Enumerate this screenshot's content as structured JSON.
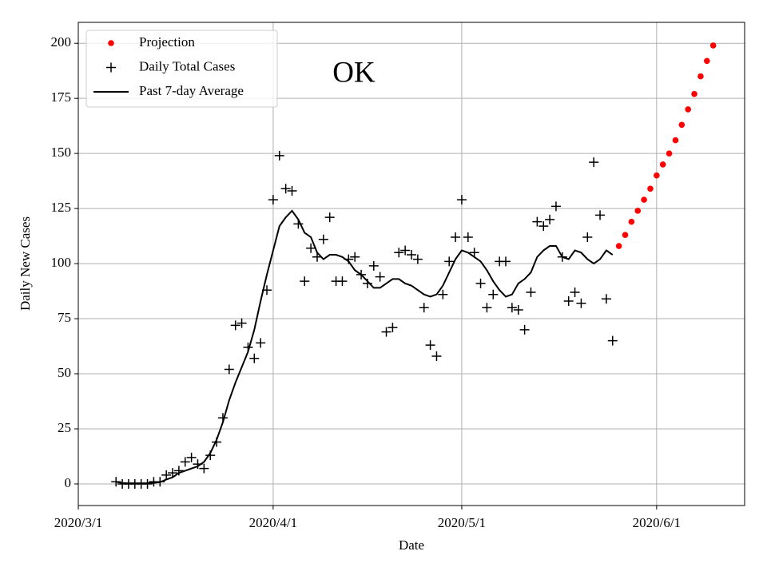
{
  "chart_data": {
    "type": "line",
    "annotation": "OK",
    "x_label": "Date",
    "y_label": "Daily New Cases",
    "xlim": [
      "2020/3/1",
      "2020/6/15"
    ],
    "xticks": [
      "2020/3/1",
      "2020/4/1",
      "2020/5/1",
      "2020/6/1"
    ],
    "ylim": [
      -9.8,
      209.5
    ],
    "yticks": [
      0,
      25,
      50,
      75,
      100,
      125,
      150,
      175,
      200
    ],
    "grid": true,
    "legend": "upper left",
    "series": [
      {
        "name": "Projection",
        "color": "#ff0000",
        "style": "dot",
        "x": [
          "2020/5/26",
          "2020/5/27",
          "2020/5/28",
          "2020/5/29",
          "2020/5/30",
          "2020/5/31",
          "2020/6/1",
          "2020/6/2",
          "2020/6/3",
          "2020/6/4",
          "2020/6/5",
          "2020/6/6",
          "2020/6/7",
          "2020/6/8",
          "2020/6/9",
          "2020/6/10"
        ],
        "values": [
          108,
          113,
          119,
          124,
          129,
          134,
          140,
          145,
          150,
          156,
          163,
          170,
          177,
          185,
          192,
          199
        ]
      },
      {
        "name": "Daily Total Cases",
        "color": "#000000",
        "style": "plus",
        "x": [
          "2020/3/7",
          "2020/3/8",
          "2020/3/9",
          "2020/3/10",
          "2020/3/11",
          "2020/3/12",
          "2020/3/13",
          "2020/3/14",
          "2020/3/15",
          "2020/3/16",
          "2020/3/17",
          "2020/3/18",
          "2020/3/19",
          "2020/3/20",
          "2020/3/21",
          "2020/3/22",
          "2020/3/23",
          "2020/3/24",
          "2020/3/25",
          "2020/3/26",
          "2020/3/27",
          "2020/3/28",
          "2020/3/29",
          "2020/3/30",
          "2020/3/31",
          "2020/4/1",
          "2020/4/2",
          "2020/4/3",
          "2020/4/4",
          "2020/4/5",
          "2020/4/6",
          "2020/4/7",
          "2020/4/8",
          "2020/4/9",
          "2020/4/10",
          "2020/4/11",
          "2020/4/12",
          "2020/4/13",
          "2020/4/14",
          "2020/4/15",
          "2020/4/16",
          "2020/4/17",
          "2020/4/18",
          "2020/4/19",
          "2020/4/20",
          "2020/4/21",
          "2020/4/22",
          "2020/4/23",
          "2020/4/24",
          "2020/4/25",
          "2020/4/26",
          "2020/4/27",
          "2020/4/28",
          "2020/4/29",
          "2020/4/30",
          "2020/5/1",
          "2020/5/2",
          "2020/5/3",
          "2020/5/4",
          "2020/5/5",
          "2020/5/6",
          "2020/5/7",
          "2020/5/8",
          "2020/5/9",
          "2020/5/10",
          "2020/5/11",
          "2020/5/12",
          "2020/5/13",
          "2020/5/14",
          "2020/5/15",
          "2020/5/16",
          "2020/5/17",
          "2020/5/18",
          "2020/5/19",
          "2020/5/20",
          "2020/5/21",
          "2020/5/22",
          "2020/5/23",
          "2020/5/24",
          "2020/5/25"
        ],
        "values": [
          1,
          0,
          0,
          0,
          0,
          0,
          1,
          1,
          4,
          5,
          6,
          10,
          12,
          9,
          7,
          13,
          19,
          30,
          52,
          72,
          73,
          62,
          57,
          64,
          88,
          129,
          149,
          134,
          133,
          118,
          92,
          107,
          103,
          111,
          121,
          92,
          92,
          102,
          103,
          95,
          91,
          99,
          94,
          69,
          71,
          105,
          106,
          104,
          102,
          80,
          63,
          58,
          86,
          101,
          112,
          129,
          112,
          105,
          91,
          80,
          86,
          101,
          101,
          80,
          79,
          70,
          87,
          119,
          117,
          120,
          126,
          103,
          83,
          87,
          82,
          112,
          146,
          122,
          84,
          65
        ]
      },
      {
        "name": "Past 7-day Average",
        "color": "#000000",
        "style": "line",
        "x": [
          "2020/3/7",
          "2020/3/8",
          "2020/3/9",
          "2020/3/10",
          "2020/3/11",
          "2020/3/12",
          "2020/3/13",
          "2020/3/14",
          "2020/3/15",
          "2020/3/16",
          "2020/3/17",
          "2020/3/18",
          "2020/3/19",
          "2020/3/20",
          "2020/3/21",
          "2020/3/22",
          "2020/3/23",
          "2020/3/24",
          "2020/3/25",
          "2020/3/26",
          "2020/3/27",
          "2020/3/28",
          "2020/3/29",
          "2020/3/30",
          "2020/3/31",
          "2020/4/1",
          "2020/4/2",
          "2020/4/3",
          "2020/4/4",
          "2020/4/5",
          "2020/4/6",
          "2020/4/7",
          "2020/4/8",
          "2020/4/9",
          "2020/4/10",
          "2020/4/11",
          "2020/4/12",
          "2020/4/13",
          "2020/4/14",
          "2020/4/15",
          "2020/4/16",
          "2020/4/17",
          "2020/4/18",
          "2020/4/19",
          "2020/4/20",
          "2020/4/21",
          "2020/4/22",
          "2020/4/23",
          "2020/4/24",
          "2020/4/25",
          "2020/4/26",
          "2020/4/27",
          "2020/4/28",
          "2020/4/29",
          "2020/4/30",
          "2020/5/1",
          "2020/5/2",
          "2020/5/3",
          "2020/5/4",
          "2020/5/5",
          "2020/5/6",
          "2020/5/7",
          "2020/5/8",
          "2020/5/9",
          "2020/5/10",
          "2020/5/11",
          "2020/5/12",
          "2020/5/13",
          "2020/5/14",
          "2020/5/15",
          "2020/5/16",
          "2020/5/17",
          "2020/5/18",
          "2020/5/19",
          "2020/5/20",
          "2020/5/21",
          "2020/5/22",
          "2020/5/23",
          "2020/5/24",
          "2020/5/25"
        ],
        "values": [
          1,
          0.4,
          0.3,
          0.3,
          0.3,
          0.3,
          0.5,
          0.8,
          2,
          3,
          5,
          6,
          7,
          8,
          10,
          14,
          20,
          28,
          38,
          46,
          53,
          60,
          70,
          83,
          95,
          106,
          117,
          121,
          124,
          120,
          114,
          112,
          105,
          102,
          104,
          104,
          103,
          101,
          97,
          95,
          92,
          89,
          89,
          91,
          93,
          93,
          91,
          90,
          88,
          86,
          85,
          86,
          90,
          96,
          102,
          106,
          105,
          103,
          101,
          97,
          92,
          88,
          85,
          86,
          91,
          93,
          96,
          103,
          106,
          108,
          108,
          103,
          102,
          106,
          105,
          102,
          100,
          102,
          106,
          104
        ]
      }
    ]
  }
}
